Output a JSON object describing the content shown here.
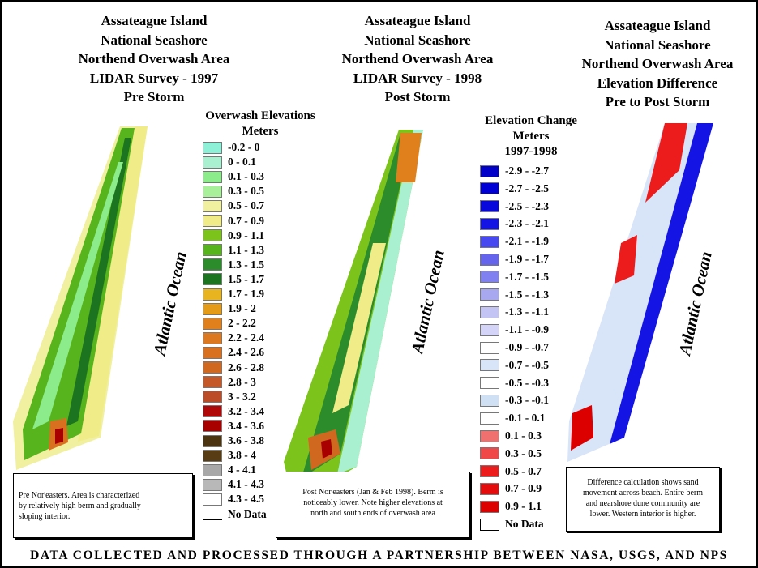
{
  "panels": [
    {
      "title_lines": [
        "Assateague Island",
        "National Seashore",
        "Northend Overwash Area",
        "LIDAR Survey - 1997",
        "Pre Storm"
      ],
      "ocean_label": "Atlantic Ocean"
    },
    {
      "title_lines": [
        "Assateague Island",
        "National Seashore",
        "Northend Overwash Area",
        "LIDAR Survey - 1998",
        "Post Storm"
      ],
      "ocean_label": "Atlantic Ocean"
    },
    {
      "title_lines": [
        "Assateague Island",
        "National Seashore",
        "Northend Overwash Area",
        "Elevation Difference",
        "Pre to Post Storm"
      ],
      "ocean_label": "Atlantic Ocean"
    }
  ],
  "elevation_legend": {
    "title_lines": [
      "Overwash Elevations",
      "Meters"
    ],
    "items": [
      {
        "label": "-0.2 - 0",
        "color": "#8ff0d8"
      },
      {
        "label": "0 - 0.1",
        "color": "#a8f0d0"
      },
      {
        "label": "0.1 - 0.3",
        "color": "#8cec8c"
      },
      {
        "label": "0.3 - 0.5",
        "color": "#a8f09a"
      },
      {
        "label": "0.5 - 0.7",
        "color": "#f0f0a0"
      },
      {
        "label": "0.7 - 0.9",
        "color": "#f0ec88"
      },
      {
        "label": "0.9 - 1.1",
        "color": "#7cc41c"
      },
      {
        "label": "1.1 - 1.3",
        "color": "#58b41c"
      },
      {
        "label": "1.3 - 1.5",
        "color": "#2c8c2c"
      },
      {
        "label": "1.5 - 1.7",
        "color": "#1c7420"
      },
      {
        "label": "1.7 - 1.9",
        "color": "#e8b420"
      },
      {
        "label": "1.9 - 2",
        "color": "#e49c18"
      },
      {
        "label": "2 - 2.2",
        "color": "#e0801c"
      },
      {
        "label": "2.2 - 2.4",
        "color": "#dc7820"
      },
      {
        "label": "2.4 - 2.6",
        "color": "#d87020"
      },
      {
        "label": "2.6 - 2.8",
        "color": "#d06820"
      },
      {
        "label": "2.8 - 3",
        "color": "#c45828"
      },
      {
        "label": "3 - 3.2",
        "color": "#bc4c28"
      },
      {
        "label": "3.2 - 3.4",
        "color": "#b00808"
      },
      {
        "label": "3.4 - 3.6",
        "color": "#a80000"
      },
      {
        "label": "3.6 - 3.8",
        "color": "#4c3410"
      },
      {
        "label": "3.8 - 4",
        "color": "#583c14"
      },
      {
        "label": "4 - 4.1",
        "color": "#a8a8a8"
      },
      {
        "label": "4.1 - 4.3",
        "color": "#b8b8b8"
      },
      {
        "label": "4.3 - 4.5",
        "color": "#ffffff"
      },
      {
        "label": "No Data",
        "color": "none"
      }
    ]
  },
  "change_legend": {
    "title_lines": [
      "Elevation Change",
      "Meters",
      "1997-1998"
    ],
    "items": [
      {
        "label": "-2.9 - -2.7",
        "color": "#0000c8"
      },
      {
        "label": "-2.7 - -2.5",
        "color": "#0000d4"
      },
      {
        "label": "-2.5 - -2.3",
        "color": "#0808dc"
      },
      {
        "label": "-2.3 - -2.1",
        "color": "#1414e4"
      },
      {
        "label": "-2.1 - -1.9",
        "color": "#4848f0"
      },
      {
        "label": "-1.9 - -1.7",
        "color": "#6464ec"
      },
      {
        "label": "-1.7 - -1.5",
        "color": "#8080f0"
      },
      {
        "label": "-1.5 - -1.3",
        "color": "#a8a8f0"
      },
      {
        "label": "-1.3 - -1.1",
        "color": "#c4c4f4"
      },
      {
        "label": "-1.1 - -0.9",
        "color": "#d4d4f8"
      },
      {
        "label": "-0.9 - -0.7",
        "color": "#ffffff"
      },
      {
        "label": "-0.7 - -0.5",
        "color": "#d8e4f8"
      },
      {
        "label": "-0.5 - -0.3",
        "color": "#ffffff"
      },
      {
        "label": "-0.3 - -0.1",
        "color": "#d0e0f4"
      },
      {
        "label": "-0.1 - 0.1",
        "color": "#ffffff"
      },
      {
        "label": "0.1 - 0.3",
        "color": "#f07070"
      },
      {
        "label": "0.3 - 0.5",
        "color": "#f04848"
      },
      {
        "label": "0.5 - 0.7",
        "color": "#ec1c1c"
      },
      {
        "label": "0.7 - 0.9",
        "color": "#e40c0c"
      },
      {
        "label": "0.9 - 1.1",
        "color": "#dc0000"
      },
      {
        "label": "No Data",
        "color": "none"
      }
    ]
  },
  "notes": [
    {
      "lines": [
        "Pre Nor'easters.  Area is characterized",
        "by relatively high berm and gradually",
        "sloping interior."
      ]
    },
    {
      "lines": [
        "Post Nor'easters  (Jan & Feb 1998).  Berm is",
        "noticeably lower.  Note higher elevations at",
        "north and south ends of overwash area"
      ]
    },
    {
      "lines": [
        "Difference calculation shows sand",
        "movement across beach.  Entire berm",
        "and nearshore dune community are",
        "lower.  Western interior is higher."
      ]
    }
  ],
  "footer": "DATA COLLECTED AND PROCESSED THROUGH A PARTNERSHIP BETWEEN NASA, USGS, AND NPS"
}
